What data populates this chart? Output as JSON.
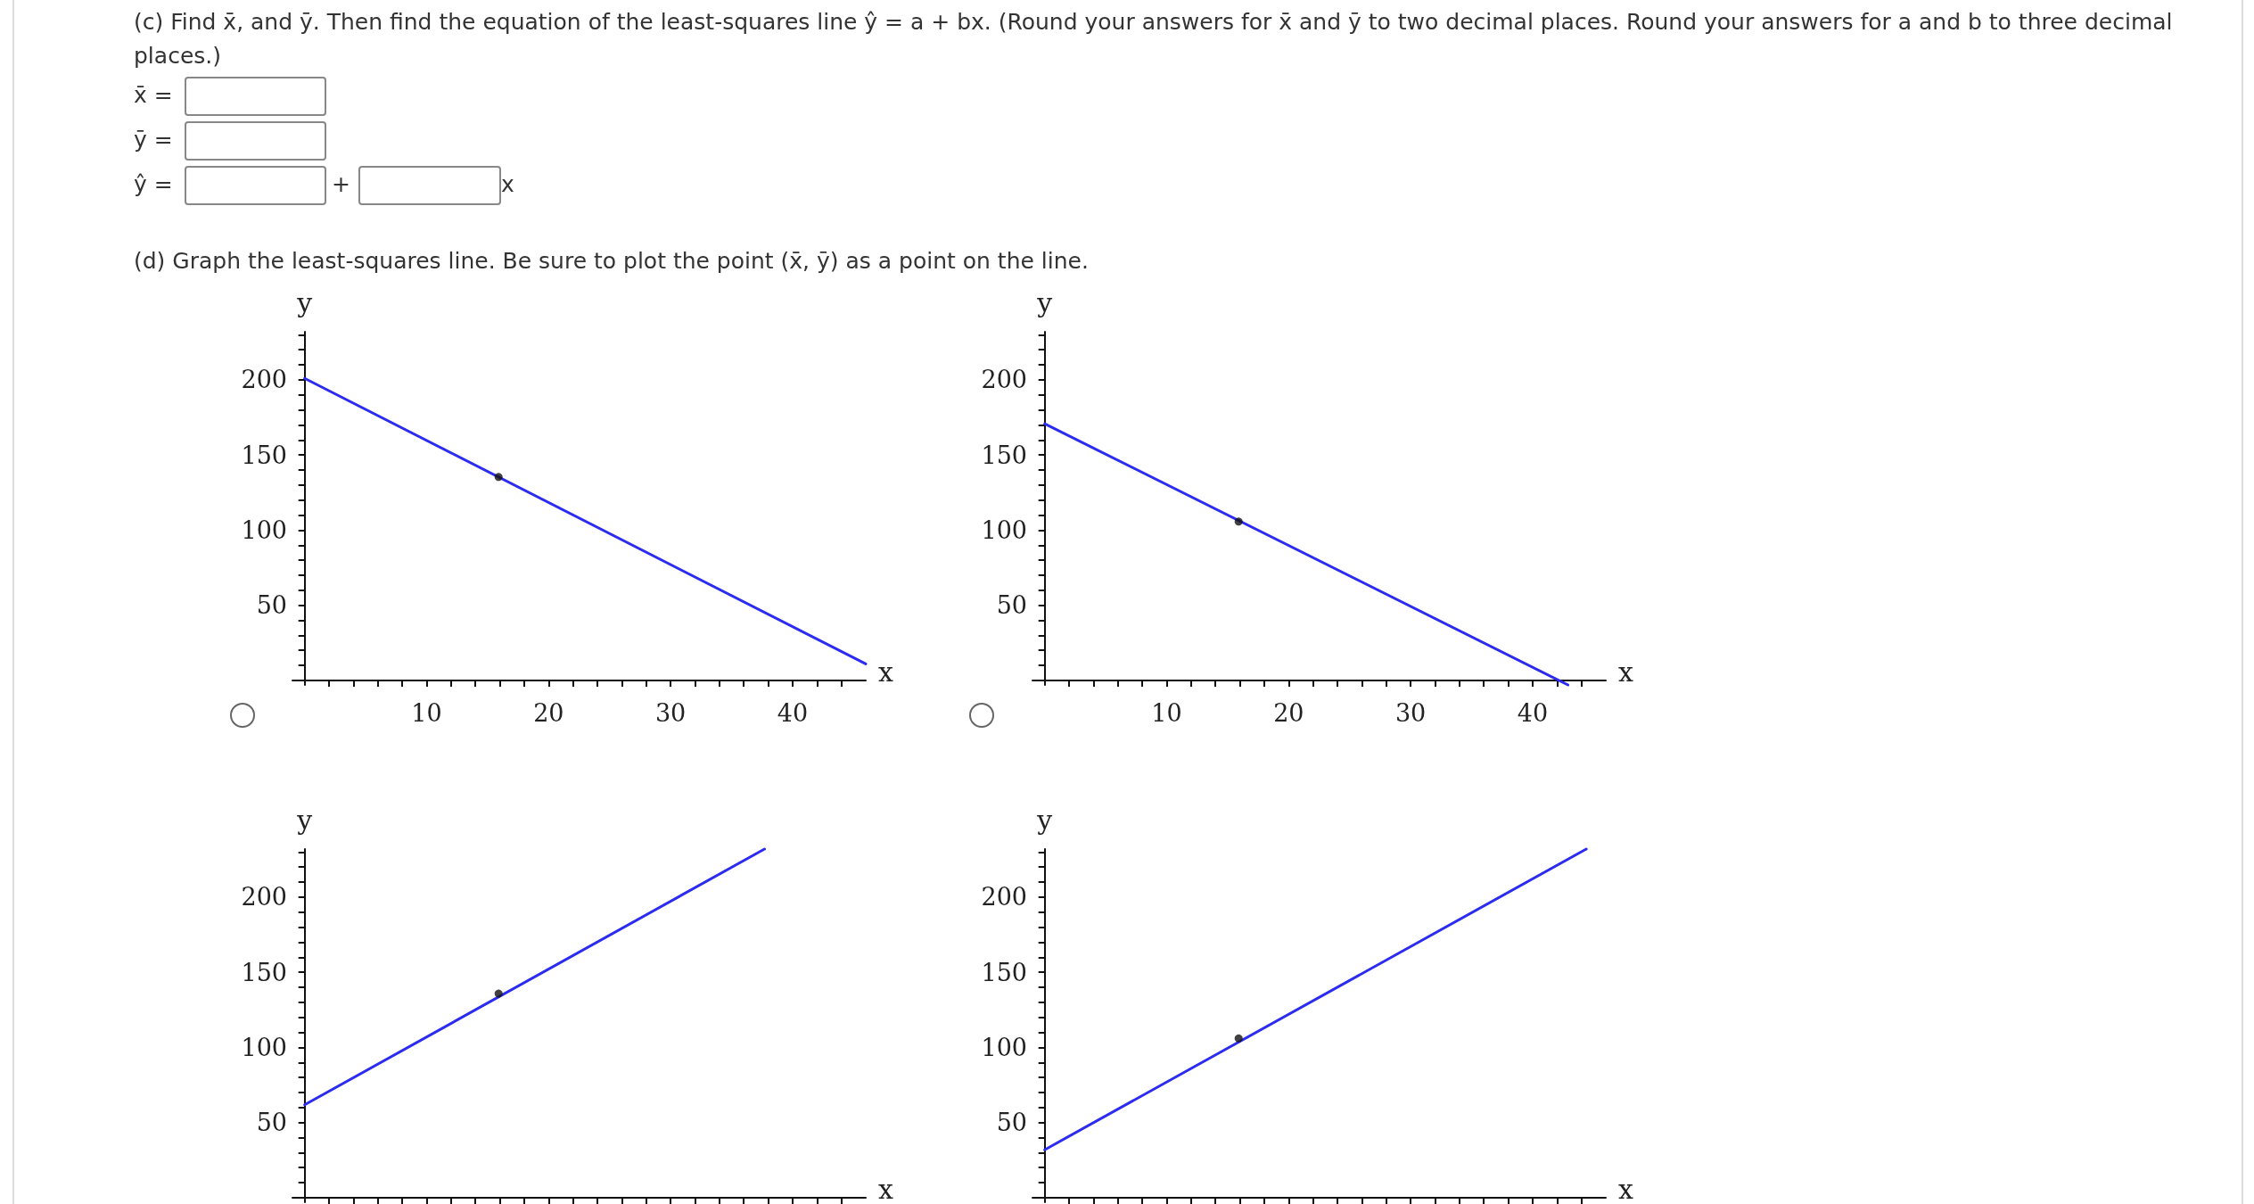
{
  "chart_data": [
    {
      "type": "other",
      "title": "(c) Find x̄, and ȳ. Then find the equation of the least-squares line ŷ = a + bx. (Round your answers for x̄ and ȳ to two decimal places. Round your answers for a and b to three decimal places.)",
      "annotations": [
        "x̄ =",
        "ȳ =",
        "ŷ =",
        "+",
        "x",
        "(d) Graph the least-squares line. Be sure to plot the point (x̄, ȳ) as a point on the line."
      ]
    },
    {
      "type": "line",
      "xlabel": "x",
      "ylabel": "y",
      "xlim": [
        -1,
        46
      ],
      "ylim": [
        -3,
        232
      ],
      "xticks": [
        {
          "value": 2,
          "label": null
        },
        {
          "value": 4,
          "label": null
        },
        {
          "value": 6,
          "label": null
        },
        {
          "value": 8,
          "label": null
        },
        10,
        {
          "value": 12,
          "label": null
        },
        {
          "value": 14,
          "label": null
        },
        {
          "value": 16,
          "label": null
        },
        {
          "value": 18,
          "label": null
        },
        20,
        {
          "value": 22,
          "label": null
        },
        {
          "value": 24,
          "label": null
        },
        {
          "value": 26,
          "label": null
        },
        {
          "value": 28,
          "label": null
        },
        30,
        {
          "value": 32,
          "label": null
        },
        {
          "value": 34,
          "label": null
        },
        {
          "value": 36,
          "label": null
        },
        {
          "value": 38,
          "label": null
        },
        40,
        {
          "value": 42,
          "label": null
        },
        {
          "value": 44,
          "label": null
        }
      ],
      "yticks": [
        {
          "value": 10,
          "label": null
        },
        {
          "value": 20,
          "label": null
        },
        {
          "value": 30,
          "label": null
        },
        {
          "value": 40,
          "label": null
        },
        50,
        {
          "value": 60,
          "label": null
        },
        {
          "value": 70,
          "label": null
        },
        {
          "value": 80,
          "label": null
        },
        {
          "value": 90,
          "label": null
        },
        100,
        {
          "value": 110,
          "label": null
        },
        {
          "value": 120,
          "label": null
        },
        {
          "value": 130,
          "label": null
        },
        {
          "value": 140,
          "label": null
        },
        150,
        {
          "value": 160,
          "label": null
        },
        {
          "value": 170,
          "label": null
        },
        {
          "value": 180,
          "label": null
        },
        {
          "value": 190,
          "label": null
        },
        200,
        {
          "value": 210,
          "label": null
        },
        {
          "value": 220,
          "label": null
        },
        {
          "value": 230,
          "label": null
        }
      ],
      "series": [
        {
          "type": "line",
          "color": "#2b2bf2",
          "x": [
            0,
            46
          ],
          "values": [
            201,
            11
          ]
        },
        {
          "type": "scatter",
          "color": "#111111",
          "marker": "circle",
          "x": [
            15.9
          ],
          "values": [
            135.4
          ]
        }
      ]
    },
    {
      "type": "line",
      "xlabel": "x",
      "ylabel": "y",
      "xlim": [
        -1,
        46
      ],
      "ylim": [
        -3,
        232
      ],
      "xticks": [
        {
          "value": 2,
          "label": null
        },
        {
          "value": 4,
          "label": null
        },
        {
          "value": 6,
          "label": null
        },
        {
          "value": 8,
          "label": null
        },
        10,
        {
          "value": 12,
          "label": null
        },
        {
          "value": 14,
          "label": null
        },
        {
          "value": 16,
          "label": null
        },
        {
          "value": 18,
          "label": null
        },
        20,
        {
          "value": 22,
          "label": null
        },
        {
          "value": 24,
          "label": null
        },
        {
          "value": 26,
          "label": null
        },
        {
          "value": 28,
          "label": null
        },
        30,
        {
          "value": 32,
          "label": null
        },
        {
          "value": 34,
          "label": null
        },
        {
          "value": 36,
          "label": null
        },
        {
          "value": 38,
          "label": null
        },
        40,
        {
          "value": 42,
          "label": null
        },
        {
          "value": 44,
          "label": null
        }
      ],
      "yticks": [
        {
          "value": 10,
          "label": null
        },
        {
          "value": 20,
          "label": null
        },
        {
          "value": 30,
          "label": null
        },
        {
          "value": 40,
          "label": null
        },
        50,
        {
          "value": 60,
          "label": null
        },
        {
          "value": 70,
          "label": null
        },
        {
          "value": 80,
          "label": null
        },
        {
          "value": 90,
          "label": null
        },
        100,
        {
          "value": 110,
          "label": null
        },
        {
          "value": 120,
          "label": null
        },
        {
          "value": 130,
          "label": null
        },
        {
          "value": 140,
          "label": null
        },
        150,
        {
          "value": 160,
          "label": null
        },
        {
          "value": 170,
          "label": null
        },
        {
          "value": 180,
          "label": null
        },
        {
          "value": 190,
          "label": null
        },
        200,
        {
          "value": 210,
          "label": null
        },
        {
          "value": 220,
          "label": null
        },
        {
          "value": 230,
          "label": null
        }
      ],
      "series": [
        {
          "type": "line",
          "color": "#2b2bf2",
          "x": [
            0,
            42.9
          ],
          "values": [
            170.8,
            -3
          ]
        },
        {
          "type": "scatter",
          "color": "#111111",
          "marker": "circle",
          "x": [
            15.9
          ],
          "values": [
            105.7
          ]
        }
      ]
    },
    {
      "type": "line",
      "xlabel": "x",
      "ylabel": "y",
      "xlim": [
        -1,
        46
      ],
      "ylim": [
        -3,
        232
      ],
      "tick_labels": "y",
      "xticks": [
        {
          "value": 2,
          "label": null
        },
        {
          "value": 4,
          "label": null
        },
        {
          "value": 6,
          "label": null
        },
        {
          "value": 8,
          "label": null
        },
        {
          "value": 10,
          "label": null
        },
        {
          "value": 12,
          "label": null
        },
        {
          "value": 14,
          "label": null
        },
        {
          "value": 16,
          "label": null
        },
        {
          "value": 18,
          "label": null
        },
        {
          "value": 20,
          "label": null
        },
        {
          "value": 22,
          "label": null
        },
        {
          "value": 24,
          "label": null
        },
        {
          "value": 26,
          "label": null
        },
        {
          "value": 28,
          "label": null
        },
        {
          "value": 30,
          "label": null
        },
        {
          "value": 32,
          "label": null
        },
        {
          "value": 34,
          "label": null
        },
        {
          "value": 36,
          "label": null
        },
        {
          "value": 38,
          "label": null
        },
        {
          "value": 40,
          "label": null
        },
        {
          "value": 42,
          "label": null
        },
        {
          "value": 44,
          "label": null
        }
      ],
      "yticks": [
        {
          "value": 10,
          "label": null
        },
        {
          "value": 20,
          "label": null
        },
        {
          "value": 30,
          "label": null
        },
        {
          "value": 40,
          "label": null
        },
        50,
        {
          "value": 60,
          "label": null
        },
        {
          "value": 70,
          "label": null
        },
        {
          "value": 80,
          "label": null
        },
        {
          "value": 90,
          "label": null
        },
        100,
        {
          "value": 110,
          "label": null
        },
        {
          "value": 120,
          "label": null
        },
        {
          "value": 130,
          "label": null
        },
        {
          "value": 140,
          "label": null
        },
        150,
        {
          "value": 160,
          "label": null
        },
        {
          "value": 170,
          "label": null
        },
        {
          "value": 180,
          "label": null
        },
        {
          "value": 190,
          "label": null
        },
        200,
        {
          "value": 210,
          "label": null
        },
        {
          "value": 220,
          "label": null
        },
        {
          "value": 230,
          "label": null
        }
      ],
      "series": [
        {
          "type": "line",
          "color": "#2b2bf2",
          "x": [
            0,
            37.7
          ],
          "values": [
            61.8,
            232
          ]
        },
        {
          "type": "scatter",
          "color": "#111111",
          "marker": "circle",
          "x": [
            15.9
          ],
          "values": [
            135.8
          ]
        }
      ]
    },
    {
      "type": "line",
      "xlabel": "x",
      "ylabel": "y",
      "xlim": [
        -1,
        46
      ],
      "ylim": [
        -3,
        232
      ],
      "tick_labels": "y",
      "xticks": [
        {
          "value": 2,
          "label": null
        },
        {
          "value": 4,
          "label": null
        },
        {
          "value": 6,
          "label": null
        },
        {
          "value": 8,
          "label": null
        },
        {
          "value": 10,
          "label": null
        },
        {
          "value": 12,
          "label": null
        },
        {
          "value": 14,
          "label": null
        },
        {
          "value": 16,
          "label": null
        },
        {
          "value": 18,
          "label": null
        },
        {
          "value": 20,
          "label": null
        },
        {
          "value": 22,
          "label": null
        },
        {
          "value": 24,
          "label": null
        },
        {
          "value": 26,
          "label": null
        },
        {
          "value": 28,
          "label": null
        },
        {
          "value": 30,
          "label": null
        },
        {
          "value": 32,
          "label": null
        },
        {
          "value": 34,
          "label": null
        },
        {
          "value": 36,
          "label": null
        },
        {
          "value": 38,
          "label": null
        },
        {
          "value": 40,
          "label": null
        },
        {
          "value": 42,
          "label": null
        },
        {
          "value": 44,
          "label": null
        }
      ],
      "yticks": [
        {
          "value": 10,
          "label": null
        },
        {
          "value": 20,
          "label": null
        },
        {
          "value": 30,
          "label": null
        },
        {
          "value": 40,
          "label": null
        },
        50,
        {
          "value": 60,
          "label": null
        },
        {
          "value": 70,
          "label": null
        },
        {
          "value": 80,
          "label": null
        },
        {
          "value": 90,
          "label": null
        },
        100,
        {
          "value": 110,
          "label": null
        },
        {
          "value": 120,
          "label": null
        },
        {
          "value": 130,
          "label": null
        },
        {
          "value": 140,
          "label": null
        },
        150,
        {
          "value": 160,
          "label": null
        },
        {
          "value": 170,
          "label": null
        },
        {
          "value": 180,
          "label": null
        },
        {
          "value": 190,
          "label": null
        },
        200,
        {
          "value": 210,
          "label": null
        },
        {
          "value": 220,
          "label": null
        },
        {
          "value": 230,
          "label": null
        }
      ],
      "series": [
        {
          "type": "line",
          "color": "#2b2bf2",
          "x": [
            0,
            44.4
          ],
          "values": [
            31.9,
            232
          ]
        },
        {
          "type": "scatter",
          "color": "#111111",
          "marker": "circle",
          "x": [
            15.9
          ],
          "values": [
            106
          ]
        }
      ]
    }
  ]
}
